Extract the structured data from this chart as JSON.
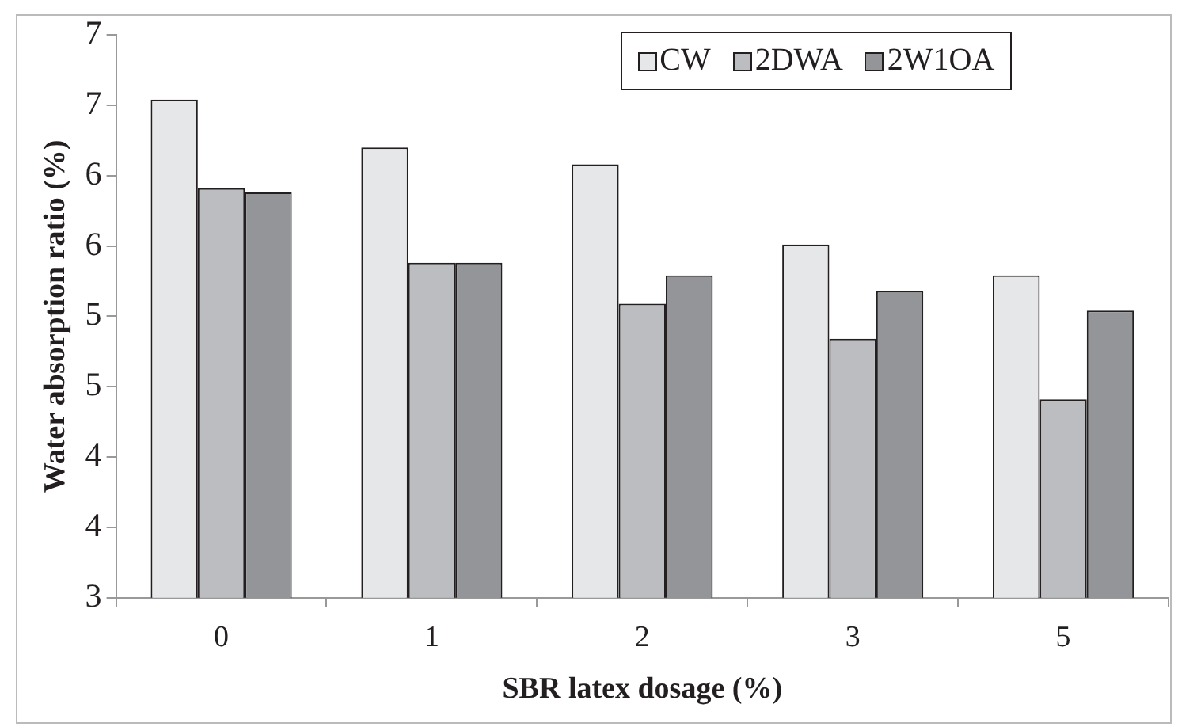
{
  "chart_data": {
    "type": "bar",
    "xlabel": "SBR latex dosage (%)",
    "ylabel": "Water absorption ratio (%)",
    "categories": [
      "0",
      "1",
      "2",
      "3",
      "5"
    ],
    "series": [
      {
        "name": "CW",
        "color": "#e6e7e8",
        "values": [
          6.54,
          6.2,
          6.08,
          5.51,
          5.29
        ]
      },
      {
        "name": "2DWA",
        "color": "#bcbdc0",
        "values": [
          5.91,
          5.38,
          5.09,
          4.84,
          4.41
        ]
      },
      {
        "name": "2W1OA",
        "color": "#939598",
        "values": [
          5.88,
          5.38,
          5.29,
          5.18,
          5.04
        ]
      }
    ],
    "ylim": [
      3,
      7
    ],
    "yticks": [
      3,
      {
        "value": 3.5,
        "label": "4"
      },
      4,
      {
        "value": 4.5,
        "label": "5"
      },
      5,
      {
        "value": 5.5,
        "label": "6"
      },
      6,
      {
        "value": 6.5,
        "label": "7"
      },
      7
    ],
    "grid": false,
    "legend": "top"
  }
}
